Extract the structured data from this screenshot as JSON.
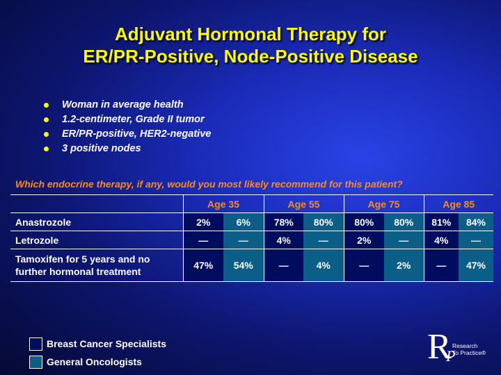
{
  "slide": {
    "title_line1": "Adjuvant Hormonal Therapy for",
    "title_line2": "ER/PR-Positive, Node-Positive Disease",
    "bullets": [
      "Woman in average health",
      "1.2-centimeter, Grade II tumor",
      "ER/PR-positive, HER2-negative",
      "3 positive nodes"
    ],
    "question": "Which endocrine therapy, if any, would you most likely recommend for this patient?"
  },
  "table": {
    "age_groups": [
      "Age 35",
      "Age 55",
      "Age 75",
      "Age 85"
    ],
    "rows": [
      {
        "label": "Anastrozole",
        "values": [
          "2%",
          "6%",
          "78%",
          "80%",
          "80%",
          "80%",
          "81%",
          "84%"
        ]
      },
      {
        "label": "Letrozole",
        "values": [
          "—",
          "—",
          "4%",
          "—",
          "2%",
          "—",
          "4%",
          "—"
        ]
      },
      {
        "label_line1": "Tamoxifen for 5 years and no",
        "label_line2": "further hormonal treatment",
        "values": [
          "47%",
          "54%",
          "—",
          "4%",
          "—",
          "2%",
          "—",
          "47%"
        ]
      }
    ]
  },
  "legend": {
    "items": [
      {
        "label": "Breast Cancer Specialists",
        "color": "#000d5e"
      },
      {
        "label": "General Oncologists",
        "color": "#0a5e88"
      }
    ]
  },
  "logo": {
    "letter_r": "R",
    "letter_p": "P",
    "line1": "Research",
    "line2": "To Practice®"
  },
  "colors": {
    "title": "#ffff00",
    "accent": "#ff8c1a",
    "specialists_fill": "#000d5e",
    "oncologists_fill": "#0a5e88"
  }
}
